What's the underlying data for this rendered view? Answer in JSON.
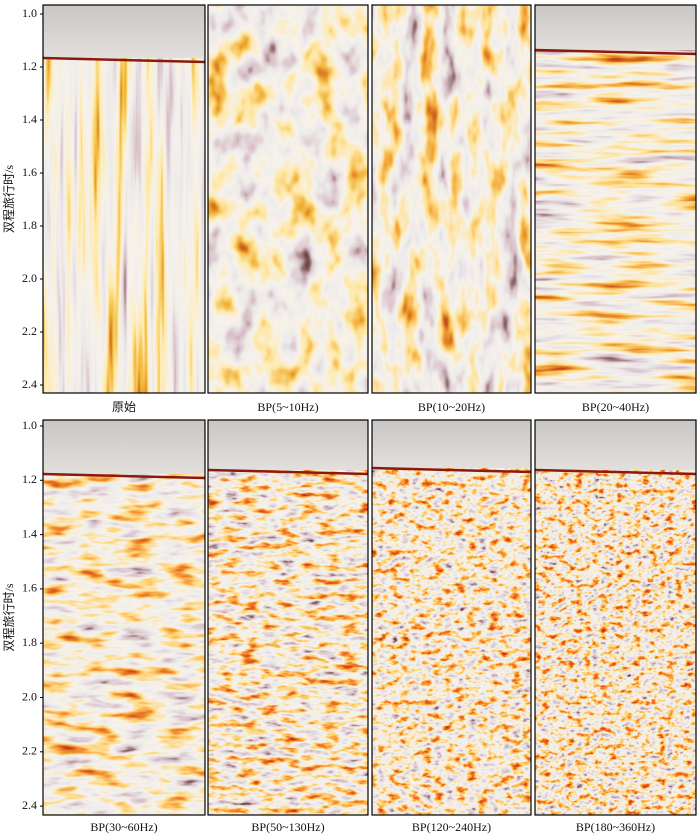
{
  "y_axis": {
    "label": "双程旅行时/s",
    "ticks": [
      "1.0",
      "1.2",
      "1.4",
      "1.6",
      "1.8",
      "2.0",
      "2.2",
      "2.4"
    ]
  },
  "panels": [
    {
      "label": "原始"
    },
    {
      "label": "BP(5~10Hz)"
    },
    {
      "label": "BP(10~20Hz)"
    },
    {
      "label": "BP(20~40Hz)"
    },
    {
      "label": "BP(30~60Hz)"
    },
    {
      "label": "BP(50~130Hz)"
    },
    {
      "label": "BP(120~240Hz)"
    },
    {
      "label": "BP(180~360Hz)"
    }
  ]
}
